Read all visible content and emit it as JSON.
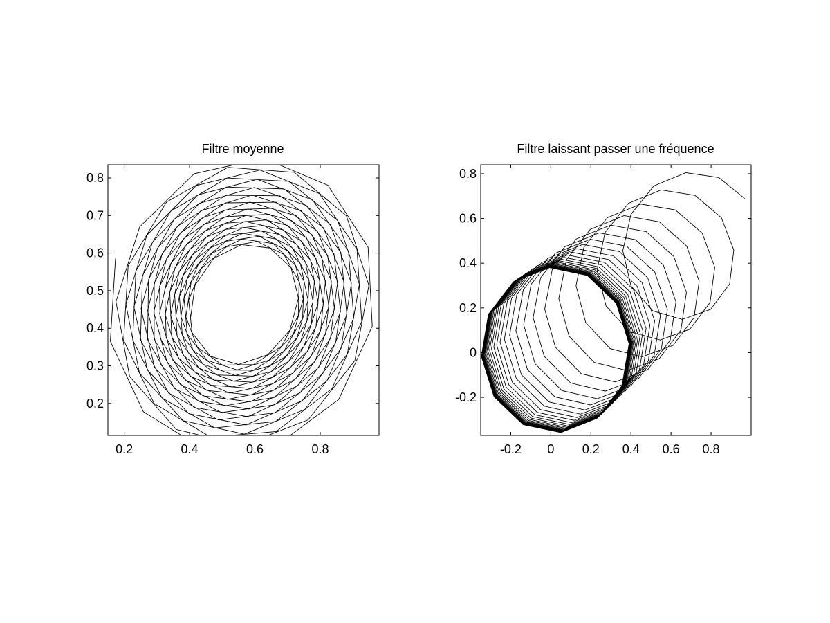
{
  "chart_data": [
    {
      "type": "line",
      "title": "Filtre moyenne",
      "xlabel": "",
      "ylabel": "",
      "xlim": [
        0.15,
        0.98
      ],
      "ylim": [
        0.115,
        0.835
      ],
      "xticks": [
        0.2,
        0.4,
        0.6,
        0.8
      ],
      "xtick_labels": [
        "0.2",
        "0.4",
        "0.6",
        "0.8"
      ],
      "yticks": [
        0.2,
        0.3,
        0.4,
        0.5,
        0.6,
        0.7,
        0.8
      ],
      "ytick_labels": [
        "0.2",
        "0.3",
        "0.4",
        "0.5",
        "0.6",
        "0.7",
        "0.8"
      ],
      "grid": false,
      "legend": "none",
      "series_description": "spiral of polygonal loops converging toward an ellipse",
      "polygon_vertices": 12,
      "loops": 24,
      "series": [
        {
          "center": [
            0.566,
            0.466
          ],
          "radius_x_start": 0.43,
          "radius_x_end": 0.17,
          "radius_y_start": 0.4,
          "radius_y_end": 0.15,
          "tilt_degrees": 35
        }
      ]
    },
    {
      "type": "line",
      "title": "Filtre laissant passer une fréquence",
      "xlabel": "",
      "ylabel": "",
      "xlim": [
        -0.35,
        1.0
      ],
      "ylim": [
        -0.37,
        0.84
      ],
      "xticks": [
        -0.2,
        0,
        0.2,
        0.4,
        0.6,
        0.8
      ],
      "xtick_labels": [
        "-0.2",
        "0",
        "0.2",
        "0.4",
        "0.6",
        "0.8"
      ],
      "yticks": [
        -0.2,
        0,
        0.2,
        0.4,
        0.6,
        0.8
      ],
      "ytick_labels": [
        "-0.2",
        "0",
        "0.2",
        "0.4",
        "0.6",
        "0.8"
      ],
      "grid": false,
      "legend": "none",
      "series_description": "polygonal loops drifting from upper right toward a circle centred near (0.02, 0.01)",
      "polygon_vertices": 12,
      "loops": 30,
      "series": [
        {
          "center_start": [
            0.72,
            0.52
          ],
          "center_end": [
            0.02,
            0.01
          ],
          "radius_start": 0.3,
          "radius_end": 0.37
        }
      ]
    }
  ]
}
